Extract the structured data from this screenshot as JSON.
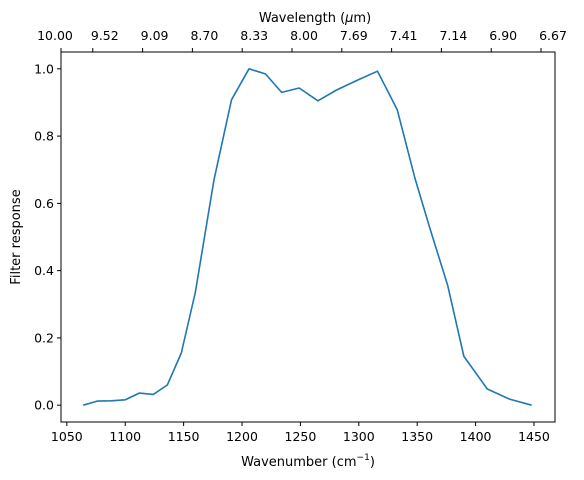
{
  "chart_data": {
    "type": "line",
    "xlabel": "Wavenumber (cm",
    "xlabel_sup": "−1",
    "xlabel_close": ")",
    "ylabel": "Filter response",
    "top_xlabel": "Wavelength (",
    "top_xlabel_mu": "μ",
    "top_xlabel_unit": "m)",
    "xlim": [
      1045,
      1468
    ],
    "ylim": [
      -0.05,
      1.05
    ],
    "x_ticks": [
      1050,
      1100,
      1150,
      1200,
      1250,
      1300,
      1350,
      1400,
      1450
    ],
    "y_ticks": [
      0.0,
      0.2,
      0.4,
      0.6,
      0.8,
      1.0
    ],
    "y_tick_labels": [
      "0.0",
      "0.2",
      "0.4",
      "0.6",
      "0.8",
      "1.0"
    ],
    "top_ticks": [
      {
        "wavenumber": 1000,
        "label": "10.00"
      },
      {
        "wavenumber": 1050,
        "label": "9.52"
      },
      {
        "wavenumber": 1100,
        "label": "9.09"
      },
      {
        "wavenumber": 1150,
        "label": "8.70"
      },
      {
        "wavenumber": 1200,
        "label": "8.33"
      },
      {
        "wavenumber": 1250,
        "label": "8.00"
      },
      {
        "wavenumber": 1300,
        "label": "7.69"
      },
      {
        "wavenumber": 1350,
        "label": "7.41"
      },
      {
        "wavenumber": 1400,
        "label": "7.14"
      },
      {
        "wavenumber": 1450,
        "label": "6.90"
      },
      {
        "wavenumber": 1500,
        "label": "6.67"
      }
    ],
    "grid": false,
    "series": [
      {
        "color": "#1f77b4",
        "x": [
          1064,
          1076,
          1088,
          1100,
          1112,
          1124,
          1136,
          1148,
          1160,
          1176,
          1191,
          1206,
          1220,
          1234,
          1249,
          1265,
          1281,
          1298,
          1316,
          1333,
          1348,
          1361,
          1376,
          1390,
          1410,
          1429,
          1448
        ],
        "y": [
          0.0,
          0.012,
          0.013,
          0.016,
          0.036,
          0.032,
          0.06,
          0.155,
          0.335,
          0.67,
          0.908,
          1.0,
          0.985,
          0.93,
          0.943,
          0.905,
          0.937,
          0.965,
          0.993,
          0.878,
          0.675,
          0.525,
          0.357,
          0.145,
          0.048,
          0.018,
          0.0
        ]
      }
    ]
  }
}
